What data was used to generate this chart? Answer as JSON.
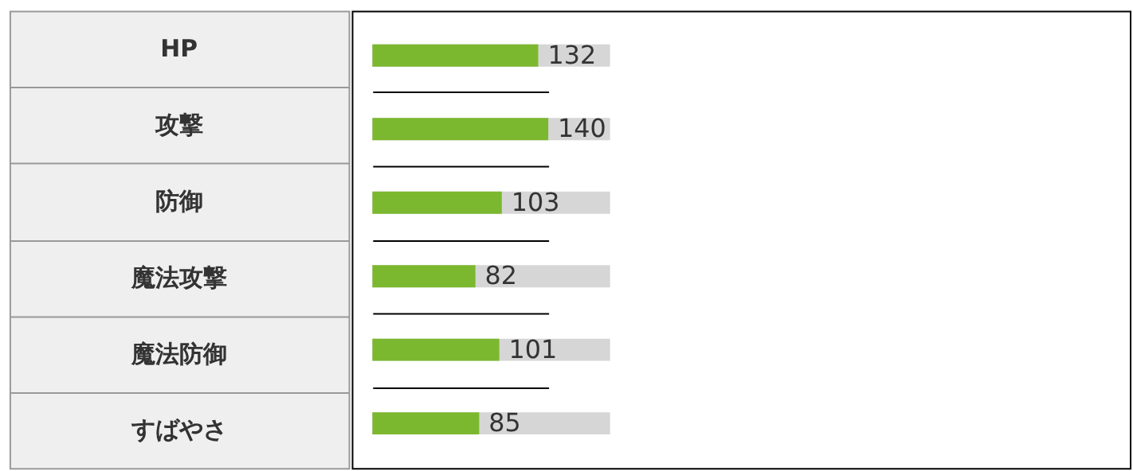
{
  "chart_data": {
    "type": "bar",
    "orientation": "horizontal",
    "categories": [
      "HP",
      "攻撃",
      "防御",
      "魔法攻撃",
      "魔法防御",
      "すばやさ"
    ],
    "values": [
      132,
      140,
      103,
      82,
      101,
      85
    ],
    "color": "#7cb82f",
    "tick_labels": false,
    "data_labels": true,
    "grid": "y"
  }
}
